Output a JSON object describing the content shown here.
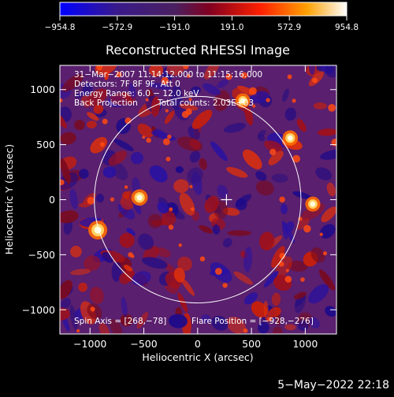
{
  "chart_data": {
    "type": "heatmap",
    "title": "Reconstructed RHESSI Image",
    "xlabel": "Heliocentric X (arcsec)",
    "ylabel": "Heliocentric Y (arcsec)",
    "xlim": [
      -1280,
      1290
    ],
    "ylim": [
      -1220,
      1220
    ],
    "xticks": [
      -1000,
      -500,
      0,
      500,
      1000
    ],
    "yticks": [
      1000,
      500,
      0,
      -500,
      -1000
    ],
    "xtick_labels": [
      "−1000",
      "−500",
      "0",
      "500",
      "1000"
    ],
    "ytick_labels": [
      "1000",
      "500",
      "0",
      "−500",
      "−1000"
    ],
    "colorbar": {
      "min": -954.8,
      "max": 954.8,
      "ticks": [
        -954.8,
        -572.9,
        -191.0,
        191.0,
        572.9,
        954.8
      ],
      "tick_labels": [
        "−954.8",
        "−572.9",
        "−191.0",
        "191.0",
        "572.9",
        "954.8"
      ],
      "colors": [
        "#0000ff",
        "#3a1a8a",
        "#4a2060",
        "#800020",
        "#ff2000",
        "#ffa000",
        "#ffffff"
      ]
    },
    "annotations": {
      "time_range": "31−Mar−2007 11:14:12.000 to 11:15:16.000",
      "detectors": "Detectors: 7F 8F 9F, Att 0",
      "energy_range": "Energy Range: 6.0 − 12.0 keV",
      "method": "Back Projection",
      "total_counts": "Total counts: 2.03E+03",
      "spin_axis": "Spin Axis = [268,−78]",
      "flare_position": "Flare Position = [−928,−276]"
    },
    "solar_disk": {
      "center": [
        0,
        0
      ],
      "radius_arcsec": 960
    },
    "cross_marker": {
      "x": 268,
      "y": 0
    },
    "bright_sources": [
      {
        "x": -928,
        "y": -276,
        "value": 954.8
      },
      {
        "x": -540,
        "y": 20,
        "value": 700
      },
      {
        "x": 860,
        "y": 560,
        "value": 600
      },
      {
        "x": 1070,
        "y": -40,
        "value": 560
      },
      {
        "x": 420,
        "y": 900,
        "value": 520
      }
    ]
  },
  "footer_timestamp": "5−May−2022 22:18"
}
